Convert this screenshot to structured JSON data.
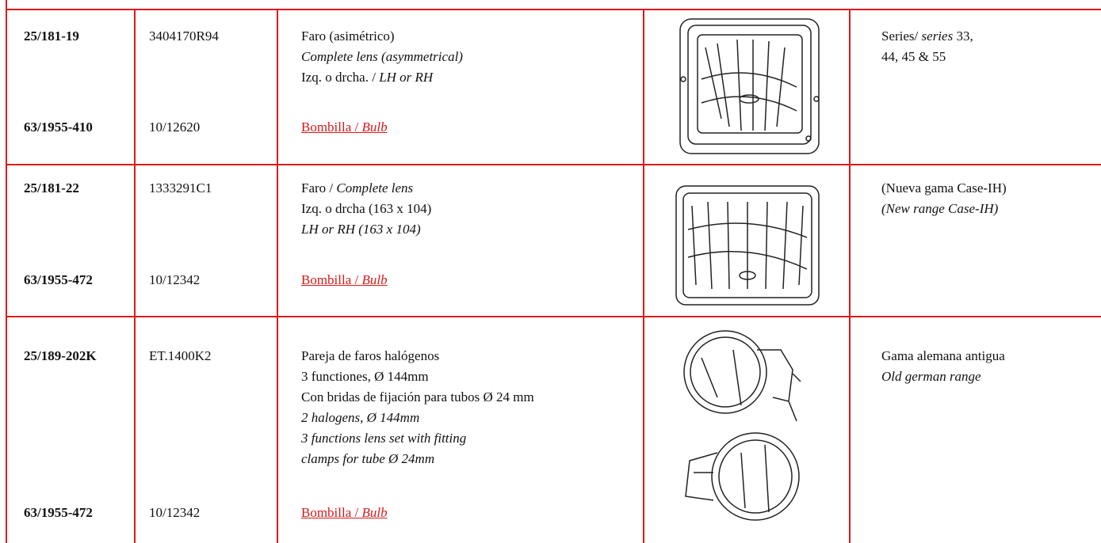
{
  "table": {
    "rows": [
      {
        "ref": "25/181-19",
        "oem": "3404170R94",
        "description": [
          [
            {
              "t": "Faro (asimétrico)"
            }
          ],
          [
            {
              "i": "Complete lens (asymmetrical)"
            }
          ],
          [
            {
              "t": "Izq. o drcha. / "
            },
            {
              "i": "LH or RH"
            }
          ]
        ],
        "bulb_ref": "63/1955-410",
        "bulb_oem": "10/12620",
        "bulb_link": [
          {
            "t": "Bombilla / "
          },
          {
            "i": "Bulb"
          }
        ],
        "application": [
          [
            {
              "t": "Series/ "
            },
            {
              "i": "series"
            },
            {
              "t": " 33,"
            }
          ],
          [
            {
              "t": "44, 45 & 55"
            }
          ]
        ]
      },
      {
        "ref": "25/181-22",
        "oem": "1333291C1",
        "description": [
          [
            {
              "t": "Faro / "
            },
            {
              "i": "Complete lens"
            }
          ],
          [
            {
              "t": "Izq. o drcha (163 x 104)"
            }
          ],
          [
            {
              "i": "LH or RH (163 x 104)"
            }
          ]
        ],
        "bulb_ref": "63/1955-472",
        "bulb_oem": "10/12342",
        "bulb_link": [
          {
            "t": "Bombilla / "
          },
          {
            "i": "Bulb"
          }
        ],
        "application": [
          [
            {
              "t": "(Nueva gama Case-IH)"
            }
          ],
          [
            {
              "i": "(New range Case-IH)"
            }
          ]
        ]
      },
      {
        "ref": "25/189-202K",
        "oem": "ET.1400K2",
        "description": [
          [
            {
              "t": "Pareja de faros halógenos"
            }
          ],
          [
            {
              "t": "3 functiones, Ø 144mm"
            }
          ],
          [
            {
              "t": "Con bridas de fijación para tubos Ø 24 mm"
            }
          ],
          [
            {
              "i": "2 halogens, Ø 144mm"
            }
          ],
          [
            {
              "i": "3 functions lens set with fitting"
            }
          ],
          [
            {
              "i": "clamps for tube Ø 24mm"
            }
          ]
        ],
        "bulb_ref": "63/1955-472",
        "bulb_oem": "10/12342",
        "bulb_link": [
          {
            "t": "Bombilla / "
          },
          {
            "i": "Bulb"
          }
        ],
        "application": [
          [
            {
              "t": "Gama alemana antigua"
            }
          ],
          [
            {
              "i": "Old german range"
            }
          ]
        ]
      }
    ]
  }
}
